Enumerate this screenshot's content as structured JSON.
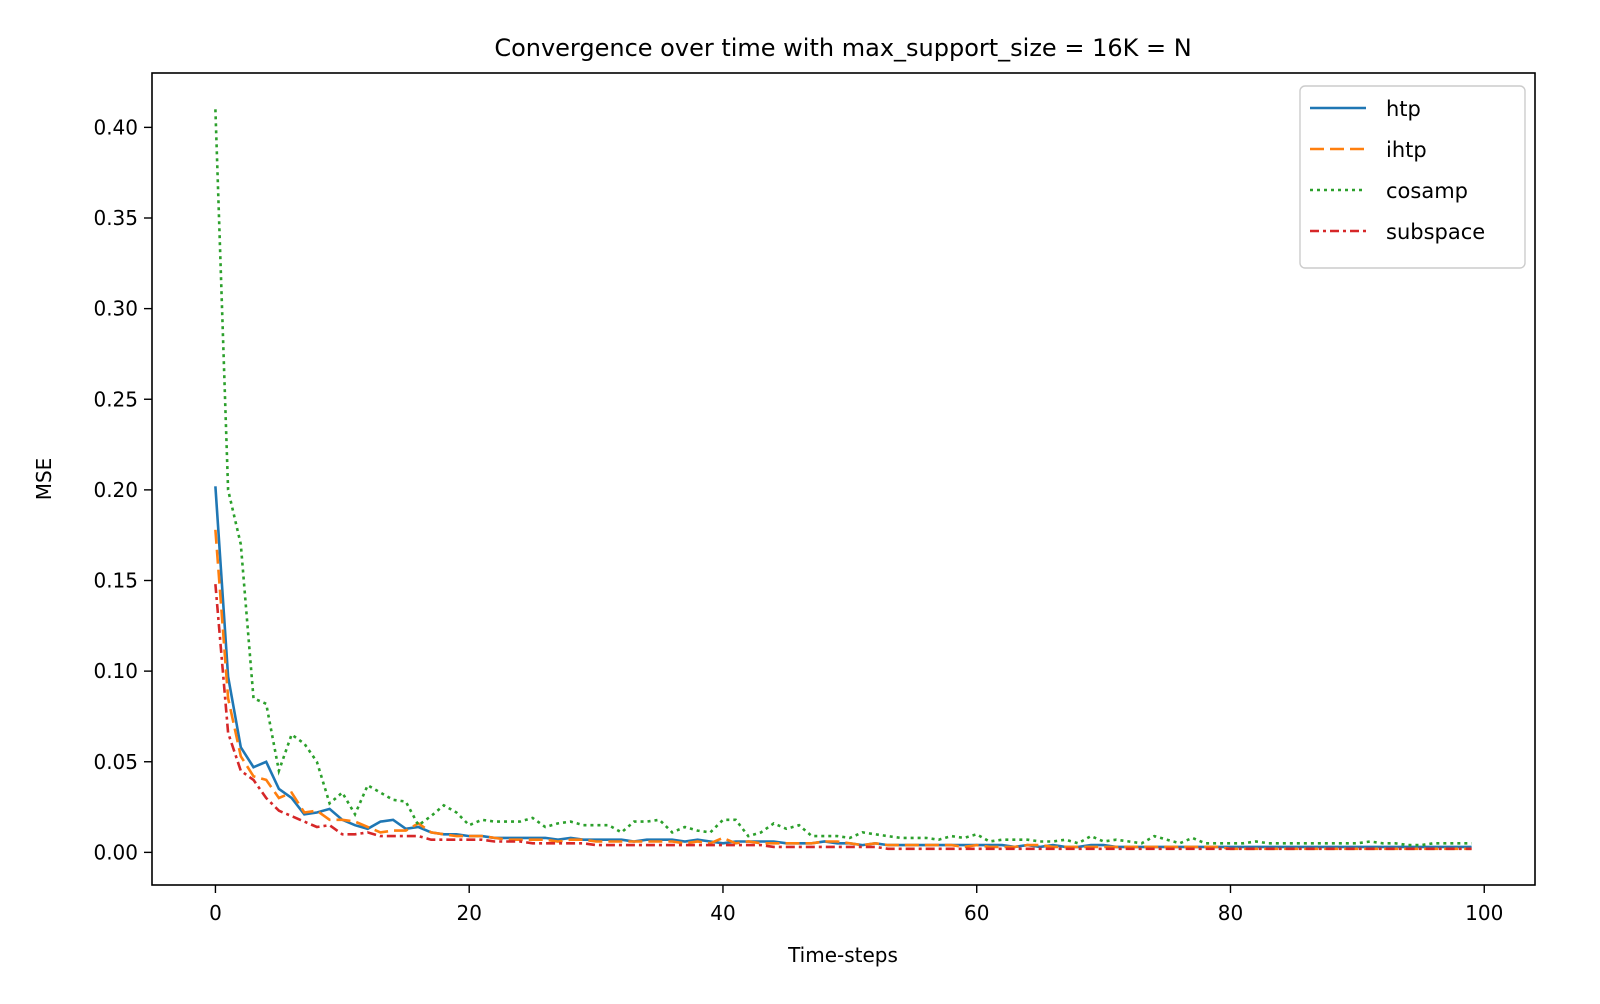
{
  "chart_data": {
    "type": "line",
    "title": "Convergence over time with max_support_size = 16K = N",
    "xlabel": "Time-steps",
    "ylabel": "MSE",
    "xlim": [
      -5,
      104
    ],
    "ylim": [
      -0.018,
      0.43
    ],
    "xticks": [
      0,
      20,
      40,
      60,
      80,
      100
    ],
    "xtick_labels": [
      "0",
      "20",
      "40",
      "60",
      "80",
      "100"
    ],
    "yticks": [
      0.0,
      0.05,
      0.1,
      0.15,
      0.2,
      0.25,
      0.3,
      0.35,
      0.4
    ],
    "ytick_labels": [
      "0.00",
      "0.05",
      "0.10",
      "0.15",
      "0.20",
      "0.25",
      "0.30",
      "0.35",
      "0.40"
    ],
    "grid": false,
    "legend_position": "top-right",
    "x": [
      0,
      1,
      2,
      3,
      4,
      5,
      6,
      7,
      8,
      9,
      10,
      11,
      12,
      13,
      14,
      15,
      16,
      17,
      18,
      19,
      20,
      21,
      22,
      23,
      24,
      25,
      26,
      27,
      28,
      29,
      30,
      31,
      32,
      33,
      34,
      35,
      36,
      37,
      38,
      39,
      40,
      41,
      42,
      43,
      44,
      45,
      46,
      47,
      48,
      49,
      50,
      51,
      52,
      53,
      54,
      55,
      56,
      57,
      58,
      59,
      60,
      61,
      62,
      63,
      64,
      65,
      66,
      67,
      68,
      69,
      70,
      71,
      72,
      73,
      74,
      75,
      76,
      77,
      78,
      79,
      80,
      81,
      82,
      83,
      84,
      85,
      86,
      87,
      88,
      89,
      90,
      91,
      92,
      93,
      94,
      95,
      96,
      97,
      98,
      99
    ],
    "series": [
      {
        "name": "htp",
        "color": "#1f77b4",
        "dash": "solid",
        "values": [
          0.202,
          0.097,
          0.058,
          0.047,
          0.05,
          0.035,
          0.03,
          0.021,
          0.022,
          0.024,
          0.018,
          0.015,
          0.013,
          0.017,
          0.018,
          0.013,
          0.014,
          0.011,
          0.01,
          0.01,
          0.009,
          0.009,
          0.008,
          0.008,
          0.008,
          0.008,
          0.008,
          0.007,
          0.008,
          0.007,
          0.007,
          0.007,
          0.007,
          0.006,
          0.007,
          0.007,
          0.007,
          0.006,
          0.007,
          0.006,
          0.005,
          0.006,
          0.006,
          0.006,
          0.006,
          0.005,
          0.005,
          0.005,
          0.006,
          0.005,
          0.005,
          0.004,
          0.005,
          0.004,
          0.004,
          0.004,
          0.004,
          0.004,
          0.004,
          0.004,
          0.004,
          0.004,
          0.004,
          0.003,
          0.004,
          0.003,
          0.004,
          0.003,
          0.003,
          0.004,
          0.004,
          0.003,
          0.003,
          0.003,
          0.003,
          0.003,
          0.003,
          0.003,
          0.003,
          0.003,
          0.003,
          0.003,
          0.003,
          0.003,
          0.003,
          0.003,
          0.003,
          0.003,
          0.003,
          0.003,
          0.003,
          0.003,
          0.003,
          0.003,
          0.003,
          0.003,
          0.003,
          0.003,
          0.003,
          0.003
        ]
      },
      {
        "name": "ihtp",
        "color": "#ff7f0e",
        "dash": "dashed",
        "values": [
          0.178,
          0.085,
          0.053,
          0.042,
          0.04,
          0.03,
          0.033,
          0.022,
          0.023,
          0.018,
          0.018,
          0.017,
          0.014,
          0.011,
          0.012,
          0.012,
          0.016,
          0.011,
          0.01,
          0.009,
          0.009,
          0.009,
          0.008,
          0.007,
          0.007,
          0.007,
          0.007,
          0.006,
          0.007,
          0.007,
          0.006,
          0.006,
          0.006,
          0.006,
          0.006,
          0.006,
          0.006,
          0.005,
          0.006,
          0.005,
          0.008,
          0.005,
          0.006,
          0.005,
          0.005,
          0.005,
          0.005,
          0.005,
          0.006,
          0.006,
          0.005,
          0.004,
          0.005,
          0.004,
          0.004,
          0.004,
          0.004,
          0.004,
          0.004,
          0.003,
          0.004,
          0.003,
          0.003,
          0.003,
          0.004,
          0.004,
          0.003,
          0.003,
          0.003,
          0.003,
          0.003,
          0.003,
          0.003,
          0.003,
          0.003,
          0.003,
          0.003,
          0.003,
          0.003,
          0.003,
          0.002,
          0.002,
          0.002,
          0.002,
          0.002,
          0.002,
          0.002,
          0.002,
          0.002,
          0.002,
          0.002,
          0.002,
          0.002,
          0.002,
          0.002,
          0.002,
          0.002,
          0.002,
          0.002,
          0.002
        ]
      },
      {
        "name": "cosamp",
        "color": "#2ca02c",
        "dash": "dotted",
        "values": [
          0.41,
          0.2,
          0.17,
          0.085,
          0.082,
          0.045,
          0.065,
          0.06,
          0.05,
          0.027,
          0.033,
          0.021,
          0.037,
          0.033,
          0.029,
          0.028,
          0.015,
          0.02,
          0.026,
          0.022,
          0.015,
          0.018,
          0.017,
          0.017,
          0.017,
          0.019,
          0.014,
          0.016,
          0.017,
          0.015,
          0.015,
          0.015,
          0.011,
          0.017,
          0.017,
          0.018,
          0.011,
          0.014,
          0.012,
          0.011,
          0.018,
          0.018,
          0.009,
          0.011,
          0.016,
          0.013,
          0.015,
          0.009,
          0.009,
          0.009,
          0.008,
          0.011,
          0.01,
          0.009,
          0.008,
          0.008,
          0.008,
          0.007,
          0.009,
          0.008,
          0.01,
          0.006,
          0.007,
          0.007,
          0.007,
          0.006,
          0.006,
          0.007,
          0.005,
          0.009,
          0.006,
          0.007,
          0.006,
          0.005,
          0.009,
          0.007,
          0.005,
          0.008,
          0.005,
          0.005,
          0.005,
          0.005,
          0.006,
          0.005,
          0.005,
          0.005,
          0.005,
          0.005,
          0.005,
          0.005,
          0.005,
          0.006,
          0.005,
          0.005,
          0.004,
          0.004,
          0.005,
          0.005,
          0.005,
          0.005
        ]
      },
      {
        "name": "subspace",
        "color": "#d62728",
        "dash": "dashdot",
        "values": [
          0.148,
          0.066,
          0.045,
          0.04,
          0.03,
          0.023,
          0.02,
          0.017,
          0.014,
          0.015,
          0.01,
          0.01,
          0.011,
          0.009,
          0.009,
          0.009,
          0.009,
          0.007,
          0.007,
          0.007,
          0.007,
          0.007,
          0.006,
          0.006,
          0.006,
          0.005,
          0.005,
          0.005,
          0.005,
          0.005,
          0.004,
          0.004,
          0.004,
          0.004,
          0.004,
          0.004,
          0.004,
          0.004,
          0.004,
          0.004,
          0.004,
          0.004,
          0.004,
          0.004,
          0.003,
          0.003,
          0.003,
          0.003,
          0.003,
          0.003,
          0.003,
          0.003,
          0.003,
          0.002,
          0.002,
          0.002,
          0.002,
          0.002,
          0.002,
          0.002,
          0.002,
          0.002,
          0.002,
          0.002,
          0.002,
          0.002,
          0.002,
          0.002,
          0.002,
          0.002,
          0.002,
          0.002,
          0.002,
          0.002,
          0.002,
          0.002,
          0.002,
          0.002,
          0.002,
          0.002,
          0.002,
          0.002,
          0.002,
          0.002,
          0.002,
          0.002,
          0.002,
          0.002,
          0.002,
          0.002,
          0.002,
          0.002,
          0.002,
          0.002,
          0.002,
          0.002,
          0.002,
          0.002,
          0.002,
          0.002
        ]
      }
    ]
  }
}
